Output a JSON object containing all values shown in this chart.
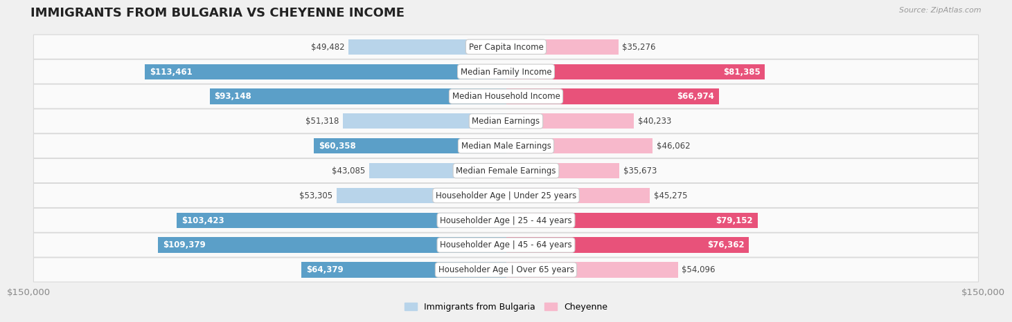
{
  "title": "IMMIGRANTS FROM BULGARIA VS CHEYENNE INCOME",
  "source": "Source: ZipAtlas.com",
  "categories": [
    "Per Capita Income",
    "Median Family Income",
    "Median Household Income",
    "Median Earnings",
    "Median Male Earnings",
    "Median Female Earnings",
    "Householder Age | Under 25 years",
    "Householder Age | 25 - 44 years",
    "Householder Age | 45 - 64 years",
    "Householder Age | Over 65 years"
  ],
  "bulgaria_values": [
    49482,
    113461,
    93148,
    51318,
    60358,
    43085,
    53305,
    103423,
    109379,
    64379
  ],
  "cheyenne_values": [
    35276,
    81385,
    66974,
    40233,
    46062,
    35673,
    45275,
    79152,
    76362,
    54096
  ],
  "bulgaria_labels": [
    "$49,482",
    "$113,461",
    "$93,148",
    "$51,318",
    "$60,358",
    "$43,085",
    "$53,305",
    "$103,423",
    "$109,379",
    "$64,379"
  ],
  "cheyenne_labels": [
    "$35,276",
    "$81,385",
    "$66,974",
    "$40,233",
    "$46,062",
    "$35,673",
    "$45,275",
    "$79,152",
    "$76,362",
    "$54,096"
  ],
  "bulgaria_color_light": "#b8d4ea",
  "bulgaria_color_dark": "#5b9fc8",
  "cheyenne_color_light": "#f7b8cb",
  "cheyenne_color_dark": "#e8527a",
  "max_value": 150000,
  "x_tick_label_left": "$150,000",
  "x_tick_label_right": "$150,000",
  "legend_bulgaria": "Immigrants from Bulgaria",
  "legend_cheyenne": "Cheyenne",
  "bg_color": "#f0f0f0",
  "row_bg_color": "#fafafa",
  "bar_height": 0.62,
  "title_fontsize": 13,
  "label_fontsize": 8.5,
  "category_fontsize": 8.5,
  "inside_label_threshold": 60000
}
